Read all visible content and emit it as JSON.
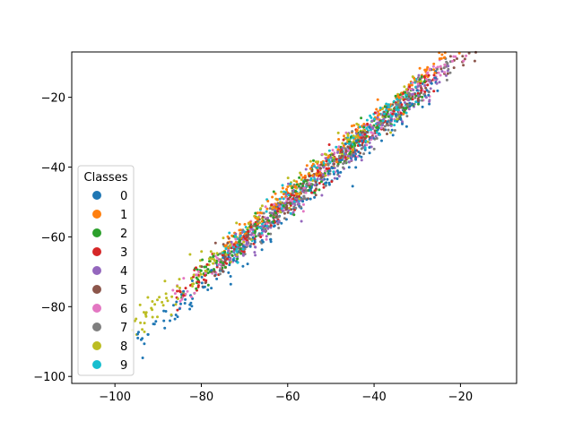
{
  "chart_data": {
    "type": "scatter",
    "title": "",
    "xlabel": "",
    "ylabel": "",
    "xlim": [
      -110,
      -7
    ],
    "ylim": [
      -102,
      -7
    ],
    "xticks": [
      -100,
      -80,
      -60,
      -40,
      -20
    ],
    "yticks": [
      -100,
      -80,
      -60,
      -40,
      -20
    ],
    "grid": false,
    "legend": {
      "title": "Classes",
      "placement": "center-left",
      "entries": [
        "0",
        "1",
        "2",
        "3",
        "4",
        "5",
        "6",
        "7",
        "8",
        "9"
      ]
    },
    "series": [
      {
        "name": "0",
        "color": "#1f77b4",
        "x_range": [
          -95,
          -25
        ],
        "trend": {
          "slope": 1.07,
          "intercept": 14,
          "offset": -2.5,
          "spread": 2.2
        },
        "count": 220
      },
      {
        "name": "1",
        "color": "#ff7f0e",
        "x_range": [
          -75,
          -12
        ],
        "trend": {
          "slope": 1.07,
          "intercept": 14,
          "offset": 3.0,
          "spread": 1.5
        },
        "count": 220
      },
      {
        "name": "2",
        "color": "#2ca02c",
        "x_range": [
          -85,
          -28
        ],
        "trend": {
          "slope": 1.07,
          "intercept": 14,
          "offset": 0.5,
          "spread": 2.2
        },
        "count": 200
      },
      {
        "name": "3",
        "color": "#d62728",
        "x_range": [
          -86,
          -26
        ],
        "trend": {
          "slope": 1.07,
          "intercept": 14,
          "offset": 0.0,
          "spread": 2.0
        },
        "count": 190
      },
      {
        "name": "4",
        "color": "#9467bd",
        "x_range": [
          -75,
          -22
        ],
        "trend": {
          "slope": 1.07,
          "intercept": 14,
          "offset": -1.0,
          "spread": 2.0
        },
        "count": 200
      },
      {
        "name": "5",
        "color": "#8c564b",
        "x_range": [
          -80,
          -13
        ],
        "trend": {
          "slope": 1.07,
          "intercept": 14,
          "offset": -0.5,
          "spread": 2.0
        },
        "count": 200
      },
      {
        "name": "6",
        "color": "#e377c2",
        "x_range": [
          -87,
          -13
        ],
        "trend": {
          "slope": 1.07,
          "intercept": 14,
          "offset": 0.5,
          "spread": 2.2
        },
        "count": 200
      },
      {
        "name": "7",
        "color": "#7f7f7f",
        "x_range": [
          -78,
          -22
        ],
        "trend": {
          "slope": 1.07,
          "intercept": 14,
          "offset": -0.5,
          "spread": 2.0
        },
        "count": 200
      },
      {
        "name": "8",
        "color": "#bcbd22",
        "x_range": [
          -96,
          -28
        ],
        "trend": {
          "slope": 1.07,
          "intercept": 14,
          "offset": 2.0,
          "spread": 2.3
        },
        "count": 200
      },
      {
        "name": "9",
        "color": "#17becf",
        "x_range": [
          -75,
          -30
        ],
        "trend": {
          "slope": 1.07,
          "intercept": 14,
          "offset": 1.0,
          "spread": 2.0
        },
        "count": 170
      }
    ]
  }
}
